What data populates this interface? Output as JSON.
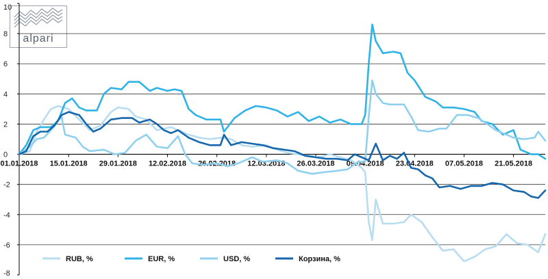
{
  "logo": {
    "text": "alpari"
  },
  "chart_data": {
    "type": "line",
    "title": "",
    "xlabel": "",
    "ylabel": "",
    "ylim": [
      -8,
      10
    ],
    "yticks": [
      -8,
      -6,
      -4,
      -2,
      0,
      2,
      4,
      6,
      8,
      10
    ],
    "xlim": [
      "2018-01-01",
      "2018-05-30"
    ],
    "xtick_labels": [
      "01.01.2018",
      "15.01.2018",
      "29.01.2018",
      "12.02.2018",
      "26.02.2018",
      "12.03.2018",
      "26.03.2018",
      "09.04.2018",
      "23.04.2018",
      "07.05.2018",
      "21.05.2018"
    ],
    "grid": "horizontal",
    "legend_position": "bottom",
    "series": [
      {
        "name": "RUB, %",
        "color": "#b8dcf0",
        "points": [
          [
            "2018-01-01",
            0.0
          ],
          [
            "2018-01-04",
            0.2
          ],
          [
            "2018-01-06",
            1.5
          ],
          [
            "2018-01-08",
            2.3
          ],
          [
            "2018-01-10",
            3.0
          ],
          [
            "2018-01-12",
            3.2
          ],
          [
            "2018-01-15",
            3.0
          ],
          [
            "2018-01-18",
            2.3
          ],
          [
            "2018-01-21",
            1.6
          ],
          [
            "2018-01-24",
            1.9
          ],
          [
            "2018-01-27",
            2.8
          ],
          [
            "2018-01-29",
            3.1
          ],
          [
            "2018-02-01",
            3.0
          ],
          [
            "2018-02-03",
            2.5
          ],
          [
            "2018-02-06",
            2.3
          ],
          [
            "2018-02-09",
            1.6
          ],
          [
            "2018-02-13",
            1.8
          ],
          [
            "2018-02-16",
            1.5
          ],
          [
            "2018-02-18",
            1.3
          ],
          [
            "2018-02-21",
            1.1
          ],
          [
            "2018-02-24",
            1.0
          ],
          [
            "2018-02-27",
            1.1
          ],
          [
            "2018-03-02",
            1.0
          ],
          [
            "2018-03-05",
            0.6
          ],
          [
            "2018-03-08",
            0.5
          ],
          [
            "2018-03-12",
            0.6
          ],
          [
            "2018-03-15",
            0.3
          ],
          [
            "2018-03-18",
            0.1
          ],
          [
            "2018-03-21",
            0.0
          ],
          [
            "2018-03-24",
            -0.1
          ],
          [
            "2018-03-27",
            -0.2
          ],
          [
            "2018-03-30",
            0.0
          ],
          [
            "2018-04-02",
            -0.2
          ],
          [
            "2018-04-05",
            -0.4
          ],
          [
            "2018-04-08",
            -0.9
          ],
          [
            "2018-04-09",
            -1.2
          ],
          [
            "2018-04-10",
            -4.5
          ],
          [
            "2018-04-11",
            -5.7
          ],
          [
            "2018-04-12",
            -3.0
          ],
          [
            "2018-04-14",
            -4.6
          ],
          [
            "2018-04-17",
            -4.6
          ],
          [
            "2018-04-20",
            -4.5
          ],
          [
            "2018-04-22",
            -4.0
          ],
          [
            "2018-04-25",
            -4.5
          ],
          [
            "2018-04-28",
            -5.5
          ],
          [
            "2018-05-01",
            -6.4
          ],
          [
            "2018-05-04",
            -6.3
          ],
          [
            "2018-05-07",
            -7.1
          ],
          [
            "2018-05-10",
            -6.8
          ],
          [
            "2018-05-13",
            -6.3
          ],
          [
            "2018-05-16",
            -6.1
          ],
          [
            "2018-05-19",
            -5.3
          ],
          [
            "2018-05-22",
            -5.9
          ],
          [
            "2018-05-25",
            -6.0
          ],
          [
            "2018-05-28",
            -6.5
          ],
          [
            "2018-05-30",
            -5.3
          ]
        ]
      },
      {
        "name": "EUR, %",
        "color": "#2fb2e6",
        "points": [
          [
            "2018-01-01",
            0.0
          ],
          [
            "2018-01-03",
            0.6
          ],
          [
            "2018-01-05",
            1.6
          ],
          [
            "2018-01-07",
            1.8
          ],
          [
            "2018-01-10",
            1.8
          ],
          [
            "2018-01-12",
            2.2
          ],
          [
            "2018-01-14",
            3.4
          ],
          [
            "2018-01-16",
            3.7
          ],
          [
            "2018-01-18",
            3.1
          ],
          [
            "2018-01-20",
            2.9
          ],
          [
            "2018-01-23",
            2.9
          ],
          [
            "2018-01-25",
            4.0
          ],
          [
            "2018-01-27",
            4.4
          ],
          [
            "2018-01-30",
            4.3
          ],
          [
            "2018-02-01",
            4.8
          ],
          [
            "2018-02-04",
            4.8
          ],
          [
            "2018-02-07",
            4.2
          ],
          [
            "2018-02-09",
            4.4
          ],
          [
            "2018-02-12",
            4.2
          ],
          [
            "2018-02-14",
            4.3
          ],
          [
            "2018-02-16",
            4.2
          ],
          [
            "2018-02-18",
            3.0
          ],
          [
            "2018-02-20",
            2.6
          ],
          [
            "2018-02-23",
            2.3
          ],
          [
            "2018-02-27",
            2.3
          ],
          [
            "2018-02-28",
            1.5
          ],
          [
            "2018-03-03",
            2.4
          ],
          [
            "2018-03-06",
            2.9
          ],
          [
            "2018-03-09",
            3.2
          ],
          [
            "2018-03-12",
            3.1
          ],
          [
            "2018-03-15",
            2.9
          ],
          [
            "2018-03-18",
            2.5
          ],
          [
            "2018-03-21",
            2.8
          ],
          [
            "2018-03-24",
            2.2
          ],
          [
            "2018-03-27",
            2.5
          ],
          [
            "2018-03-30",
            2.1
          ],
          [
            "2018-04-02",
            2.3
          ],
          [
            "2018-04-05",
            2.0
          ],
          [
            "2018-04-08",
            2.0
          ],
          [
            "2018-04-09",
            2.6
          ],
          [
            "2018-04-10",
            6.0
          ],
          [
            "2018-04-11",
            8.6
          ],
          [
            "2018-04-12",
            7.5
          ],
          [
            "2018-04-14",
            6.7
          ],
          [
            "2018-04-17",
            6.8
          ],
          [
            "2018-04-19",
            6.7
          ],
          [
            "2018-04-21",
            5.4
          ],
          [
            "2018-04-23",
            4.9
          ],
          [
            "2018-04-26",
            3.8
          ],
          [
            "2018-04-29",
            3.5
          ],
          [
            "2018-05-01",
            3.1
          ],
          [
            "2018-05-04",
            3.1
          ],
          [
            "2018-05-07",
            3.0
          ],
          [
            "2018-05-10",
            2.8
          ],
          [
            "2018-05-12",
            2.2
          ],
          [
            "2018-05-15",
            2.0
          ],
          [
            "2018-05-18",
            1.3
          ],
          [
            "2018-05-21",
            1.6
          ],
          [
            "2018-05-23",
            0.3
          ],
          [
            "2018-05-26",
            0.0
          ],
          [
            "2018-05-28",
            0.0
          ],
          [
            "2018-05-30",
            -0.3
          ]
        ]
      },
      {
        "name": "USD, %",
        "color": "#8fd0ef",
        "points": [
          [
            "2018-01-01",
            0.0
          ],
          [
            "2018-01-04",
            0.5
          ],
          [
            "2018-01-06",
            1.0
          ],
          [
            "2018-01-08",
            1.1
          ],
          [
            "2018-01-10",
            1.6
          ],
          [
            "2018-01-13",
            2.5
          ],
          [
            "2018-01-14",
            1.3
          ],
          [
            "2018-01-17",
            1.1
          ],
          [
            "2018-01-19",
            0.5
          ],
          [
            "2018-01-21",
            0.2
          ],
          [
            "2018-01-25",
            0.3
          ],
          [
            "2018-01-28",
            0.0
          ],
          [
            "2018-01-31",
            0.1
          ],
          [
            "2018-02-03",
            0.9
          ],
          [
            "2018-02-06",
            1.3
          ],
          [
            "2018-02-09",
            0.5
          ],
          [
            "2018-02-12",
            0.4
          ],
          [
            "2018-02-15",
            1.2
          ],
          [
            "2018-02-17",
            0.0
          ],
          [
            "2018-02-19",
            -0.6
          ],
          [
            "2018-02-22",
            -0.7
          ],
          [
            "2018-02-26",
            -0.6
          ],
          [
            "2018-03-01",
            -0.8
          ],
          [
            "2018-03-04",
            -0.6
          ],
          [
            "2018-03-08",
            -0.2
          ],
          [
            "2018-03-11",
            -0.5
          ],
          [
            "2018-03-15",
            -0.4
          ],
          [
            "2018-03-18",
            -0.6
          ],
          [
            "2018-03-21",
            -1.1
          ],
          [
            "2018-03-25",
            -1.3
          ],
          [
            "2018-03-28",
            -1.2
          ],
          [
            "2018-04-01",
            -1.1
          ],
          [
            "2018-04-04",
            -1.0
          ],
          [
            "2018-04-07",
            -0.5
          ],
          [
            "2018-04-09",
            -0.5
          ],
          [
            "2018-04-10",
            2.5
          ],
          [
            "2018-04-11",
            4.9
          ],
          [
            "2018-04-12",
            4.0
          ],
          [
            "2018-04-14",
            3.4
          ],
          [
            "2018-04-16",
            3.3
          ],
          [
            "2018-04-20",
            3.3
          ],
          [
            "2018-04-22",
            2.5
          ],
          [
            "2018-04-24",
            1.6
          ],
          [
            "2018-04-27",
            1.5
          ],
          [
            "2018-04-30",
            1.7
          ],
          [
            "2018-05-02",
            1.7
          ],
          [
            "2018-05-05",
            2.6
          ],
          [
            "2018-05-08",
            2.6
          ],
          [
            "2018-05-11",
            2.4
          ],
          [
            "2018-05-13",
            2.1
          ],
          [
            "2018-05-16",
            1.6
          ],
          [
            "2018-05-19",
            1.3
          ],
          [
            "2018-05-21",
            1.1
          ],
          [
            "2018-05-24",
            1.0
          ],
          [
            "2018-05-27",
            1.1
          ],
          [
            "2018-05-28",
            1.5
          ],
          [
            "2018-05-30",
            0.9
          ]
        ]
      },
      {
        "name": "Корзина, %",
        "color": "#1566ad",
        "points": [
          [
            "2018-01-01",
            0.0
          ],
          [
            "2018-01-03",
            0.2
          ],
          [
            "2018-01-05",
            1.2
          ],
          [
            "2018-01-07",
            1.5
          ],
          [
            "2018-01-09",
            1.5
          ],
          [
            "2018-01-11",
            1.9
          ],
          [
            "2018-01-13",
            2.6
          ],
          [
            "2018-01-15",
            2.8
          ],
          [
            "2018-01-18",
            2.6
          ],
          [
            "2018-01-20",
            2.0
          ],
          [
            "2018-01-22",
            1.5
          ],
          [
            "2018-01-24",
            1.7
          ],
          [
            "2018-01-27",
            2.3
          ],
          [
            "2018-01-30",
            2.4
          ],
          [
            "2018-02-02",
            2.4
          ],
          [
            "2018-02-04",
            2.1
          ],
          [
            "2018-02-07",
            2.3
          ],
          [
            "2018-02-09",
            2.0
          ],
          [
            "2018-02-11",
            1.6
          ],
          [
            "2018-02-13",
            1.4
          ],
          [
            "2018-02-15",
            1.6
          ],
          [
            "2018-02-18",
            1.1
          ],
          [
            "2018-02-21",
            0.8
          ],
          [
            "2018-02-24",
            0.6
          ],
          [
            "2018-02-27",
            0.6
          ],
          [
            "2018-02-28",
            1.3
          ],
          [
            "2018-03-02",
            0.6
          ],
          [
            "2018-03-05",
            0.8
          ],
          [
            "2018-03-08",
            0.7
          ],
          [
            "2018-03-11",
            0.6
          ],
          [
            "2018-03-14",
            0.4
          ],
          [
            "2018-03-17",
            0.3
          ],
          [
            "2018-03-20",
            0.2
          ],
          [
            "2018-03-23",
            -0.1
          ],
          [
            "2018-03-26",
            -0.2
          ],
          [
            "2018-03-29",
            -0.3
          ],
          [
            "2018-04-01",
            -0.3
          ],
          [
            "2018-04-04",
            -0.4
          ],
          [
            "2018-04-06",
            0.0
          ],
          [
            "2018-04-08",
            -0.2
          ],
          [
            "2018-04-10",
            -0.4
          ],
          [
            "2018-04-12",
            0.7
          ],
          [
            "2018-04-14",
            -0.4
          ],
          [
            "2018-04-16",
            -0.1
          ],
          [
            "2018-04-18",
            -0.3
          ],
          [
            "2018-04-20",
            0.1
          ],
          [
            "2018-04-22",
            -0.9
          ],
          [
            "2018-04-24",
            -1.0
          ],
          [
            "2018-04-26",
            -1.4
          ],
          [
            "2018-04-28",
            -1.6
          ],
          [
            "2018-04-30",
            -2.2
          ],
          [
            "2018-05-03",
            -2.1
          ],
          [
            "2018-05-06",
            -2.3
          ],
          [
            "2018-05-09",
            -2.1
          ],
          [
            "2018-05-12",
            -2.1
          ],
          [
            "2018-05-15",
            -1.9
          ],
          [
            "2018-05-18",
            -2.0
          ],
          [
            "2018-05-21",
            -2.4
          ],
          [
            "2018-05-24",
            -2.5
          ],
          [
            "2018-05-26",
            -2.8
          ],
          [
            "2018-05-28",
            -2.9
          ],
          [
            "2018-05-30",
            -2.4
          ]
        ]
      }
    ]
  }
}
